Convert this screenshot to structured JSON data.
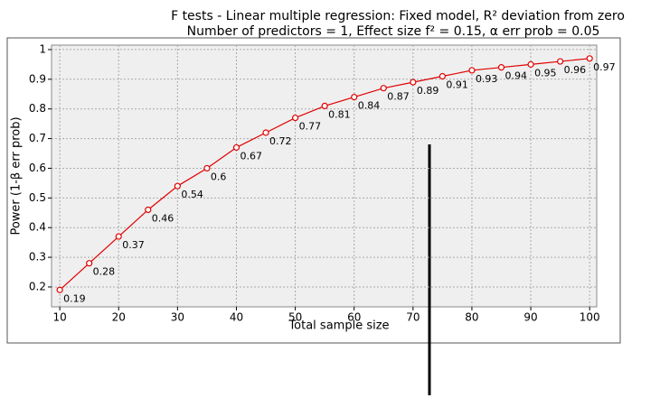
{
  "chart_data": {
    "type": "line",
    "title": "F tests - Linear multiple regression: Fixed model, R² deviation from zero",
    "subtitle": "Number of predictors = 1, Effect size f² = 0.15, α err prob = 0.05",
    "x_label": "Total sample size",
    "y_label": "Power (1-β err prob)",
    "x": [
      10,
      15,
      20,
      25,
      30,
      35,
      40,
      45,
      50,
      55,
      60,
      65,
      70,
      75,
      80,
      85,
      90,
      95,
      100
    ],
    "series": [
      {
        "name": "Power",
        "color": "#e00000",
        "values": [
          0.19,
          0.28,
          0.37,
          0.46,
          0.54,
          0.6,
          0.67,
          0.72,
          0.77,
          0.81,
          0.84,
          0.87,
          0.89,
          0.91,
          0.93,
          0.94,
          0.95,
          0.96,
          0.97
        ]
      }
    ],
    "xlim": [
      8.6,
      101.2
    ],
    "xticks": [
      10,
      20,
      30,
      40,
      50,
      60,
      70,
      80,
      90,
      100
    ],
    "ylim": [
      0.133,
      1.015
    ],
    "yticks": [
      0.2,
      0.3,
      0.4,
      0.5,
      0.6,
      0.7,
      0.8,
      0.9,
      1
    ],
    "grid": true
  }
}
